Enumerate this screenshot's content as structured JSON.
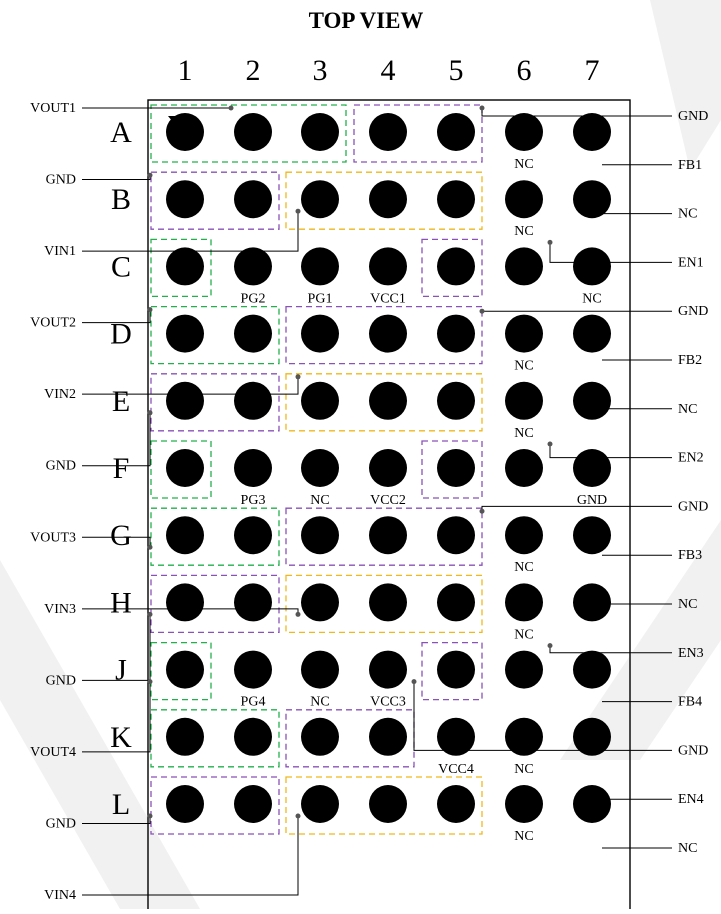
{
  "title": "TOP VIEW",
  "columns": [
    "1",
    "2",
    "3",
    "4",
    "5",
    "6",
    "7"
  ],
  "rows": [
    "A",
    "B",
    "C",
    "D",
    "E",
    "F",
    "G",
    "H",
    "J",
    "K",
    "L"
  ],
  "colors": {
    "green": "#22b04b",
    "purple": "#8a52b8",
    "yellow": "#f0b81c",
    "ball": "#000000",
    "watermark": "#f1f1f1"
  },
  "pin1_marker": "triangle-down-icon",
  "balls": {
    "A": [
      true,
      true,
      true,
      true,
      true,
      true,
      true
    ],
    "B": [
      true,
      true,
      true,
      true,
      true,
      true,
      true
    ],
    "C": [
      true,
      true,
      true,
      true,
      true,
      true,
      true
    ],
    "D": [
      true,
      true,
      true,
      true,
      true,
      true,
      true
    ],
    "E": [
      true,
      true,
      true,
      true,
      true,
      true,
      true
    ],
    "F": [
      true,
      true,
      true,
      true,
      true,
      true,
      true
    ],
    "G": [
      true,
      true,
      true,
      true,
      true,
      true,
      true
    ],
    "H": [
      true,
      true,
      true,
      true,
      true,
      true,
      true
    ],
    "J": [
      true,
      true,
      true,
      true,
      true,
      true,
      true
    ],
    "K": [
      true,
      true,
      true,
      true,
      true,
      true,
      true
    ],
    "L": [
      true,
      true,
      true,
      true,
      true,
      true,
      true
    ]
  },
  "pin_labels": [
    {
      "row": "A",
      "col": 6,
      "text": "NC"
    },
    {
      "row": "B",
      "col": 6,
      "text": "NC"
    },
    {
      "row": "C",
      "col": 2,
      "text": "PG2"
    },
    {
      "row": "C",
      "col": 3,
      "text": "PG1"
    },
    {
      "row": "C",
      "col": 4,
      "text": "VCC1"
    },
    {
      "row": "C",
      "col": 7,
      "text": "NC"
    },
    {
      "row": "D",
      "col": 6,
      "text": "NC"
    },
    {
      "row": "E",
      "col": 6,
      "text": "NC"
    },
    {
      "row": "F",
      "col": 2,
      "text": "PG3"
    },
    {
      "row": "F",
      "col": 3,
      "text": "NC"
    },
    {
      "row": "F",
      "col": 4,
      "text": "VCC2"
    },
    {
      "row": "F",
      "col": 7,
      "text": "GND"
    },
    {
      "row": "G",
      "col": 6,
      "text": "NC"
    },
    {
      "row": "H",
      "col": 6,
      "text": "NC"
    },
    {
      "row": "J",
      "col": 2,
      "text": "PG4"
    },
    {
      "row": "J",
      "col": 3,
      "text": "NC"
    },
    {
      "row": "J",
      "col": 4,
      "text": "VCC3"
    },
    {
      "row": "K",
      "col": 5,
      "text": "VCC4"
    },
    {
      "row": "K",
      "col": 6,
      "text": "NC"
    },
    {
      "row": "L",
      "col": 6,
      "text": "NC"
    }
  ],
  "left_signals": [
    {
      "text": "VOUT1",
      "row": "A",
      "tap_col": 2
    },
    {
      "text": "GND",
      "row": "B",
      "tap_col": 1
    },
    {
      "text": "VIN1",
      "row": "B",
      "tap_col": 3
    },
    {
      "text": "VOUT2",
      "row": "D",
      "tap_col": 1
    },
    {
      "text": "VIN2",
      "row": "E",
      "tap_col": 3
    },
    {
      "text": "GND",
      "row": "E",
      "tap_col": 1
    },
    {
      "text": "VOUT3",
      "row": "G",
      "tap_col": 1
    },
    {
      "text": "VIN3",
      "row": "H",
      "tap_col": 3
    },
    {
      "text": "GND",
      "row": "H",
      "tap_col": 1
    },
    {
      "text": "VOUT4",
      "row": "J",
      "tap_col": 1
    },
    {
      "text": "GND",
      "row": "L",
      "tap_col": 1
    },
    {
      "text": "VIN4",
      "row": "L",
      "tap_col": 3
    }
  ],
  "right_signals": [
    {
      "text": "GND",
      "row": "A",
      "tap_col": 5
    },
    {
      "text": "FB1",
      "row": "A",
      "tap_col": 7
    },
    {
      "text": "NC",
      "row": "B",
      "tap_col": 7
    },
    {
      "text": "EN1",
      "row": "C",
      "tap_col": 6
    },
    {
      "text": "GND",
      "row": "D",
      "tap_col": 5
    },
    {
      "text": "FB2",
      "row": "D",
      "tap_col": 7
    },
    {
      "text": "NC",
      "row": "E",
      "tap_col": 7
    },
    {
      "text": "EN2",
      "row": "F",
      "tap_col": 6
    },
    {
      "text": "GND",
      "row": "G",
      "tap_col": 5
    },
    {
      "text": "FB3",
      "row": "G",
      "tap_col": 7
    },
    {
      "text": "NC",
      "row": "H",
      "tap_col": 7
    },
    {
      "text": "EN3",
      "row": "J",
      "tap_col": 6
    },
    {
      "text": "FB4",
      "row": "J",
      "tap_col": 7
    },
    {
      "text": "GND",
      "row": "J",
      "tap_col": 4
    },
    {
      "text": "EN4",
      "row": "K",
      "tap_col": 7
    },
    {
      "text": "NC",
      "row": "L",
      "tap_col": 7
    }
  ],
  "groups": [
    {
      "color": "green",
      "cols": [
        1,
        3
      ],
      "rows": [
        "A",
        "A"
      ]
    },
    {
      "color": "purple",
      "cols": [
        4,
        5
      ],
      "rows": [
        "A",
        "A"
      ]
    },
    {
      "color": "purple",
      "cols": [
        1,
        2
      ],
      "rows": [
        "B",
        "B"
      ]
    },
    {
      "color": "yellow",
      "cols": [
        3,
        5
      ],
      "rows": [
        "B",
        "B"
      ]
    },
    {
      "color": "green",
      "cols": [
        1,
        1
      ],
      "rows": [
        "C",
        "C"
      ]
    },
    {
      "color": "purple",
      "cols": [
        5,
        5
      ],
      "rows": [
        "C",
        "C"
      ]
    },
    {
      "color": "green",
      "cols": [
        1,
        2
      ],
      "rows": [
        "D",
        "D"
      ]
    },
    {
      "color": "purple",
      "cols": [
        3,
        5
      ],
      "rows": [
        "D",
        "D"
      ]
    },
    {
      "color": "purple",
      "cols": [
        1,
        2
      ],
      "rows": [
        "E",
        "E"
      ]
    },
    {
      "color": "yellow",
      "cols": [
        3,
        5
      ],
      "rows": [
        "E",
        "E"
      ]
    },
    {
      "color": "green",
      "cols": [
        1,
        1
      ],
      "rows": [
        "F",
        "F"
      ]
    },
    {
      "color": "purple",
      "cols": [
        5,
        5
      ],
      "rows": [
        "F",
        "F"
      ]
    },
    {
      "color": "green",
      "cols": [
        1,
        2
      ],
      "rows": [
        "G",
        "G"
      ]
    },
    {
      "color": "purple",
      "cols": [
        3,
        5
      ],
      "rows": [
        "G",
        "G"
      ]
    },
    {
      "color": "purple",
      "cols": [
        1,
        2
      ],
      "rows": [
        "H",
        "H"
      ]
    },
    {
      "color": "yellow",
      "cols": [
        3,
        5
      ],
      "rows": [
        "H",
        "H"
      ]
    },
    {
      "color": "green",
      "cols": [
        1,
        1
      ],
      "rows": [
        "J",
        "J"
      ]
    },
    {
      "color": "purple",
      "cols": [
        5,
        5
      ],
      "rows": [
        "J",
        "J"
      ]
    },
    {
      "color": "green",
      "cols": [
        1,
        2
      ],
      "rows": [
        "K",
        "K"
      ]
    },
    {
      "color": "purple",
      "cols": [
        3,
        4
      ],
      "rows": [
        "K",
        "K"
      ]
    },
    {
      "color": "purple",
      "cols": [
        1,
        2
      ],
      "rows": [
        "L",
        "L"
      ]
    },
    {
      "color": "yellow",
      "cols": [
        3,
        5
      ],
      "rows": [
        "L",
        "L"
      ]
    }
  ]
}
